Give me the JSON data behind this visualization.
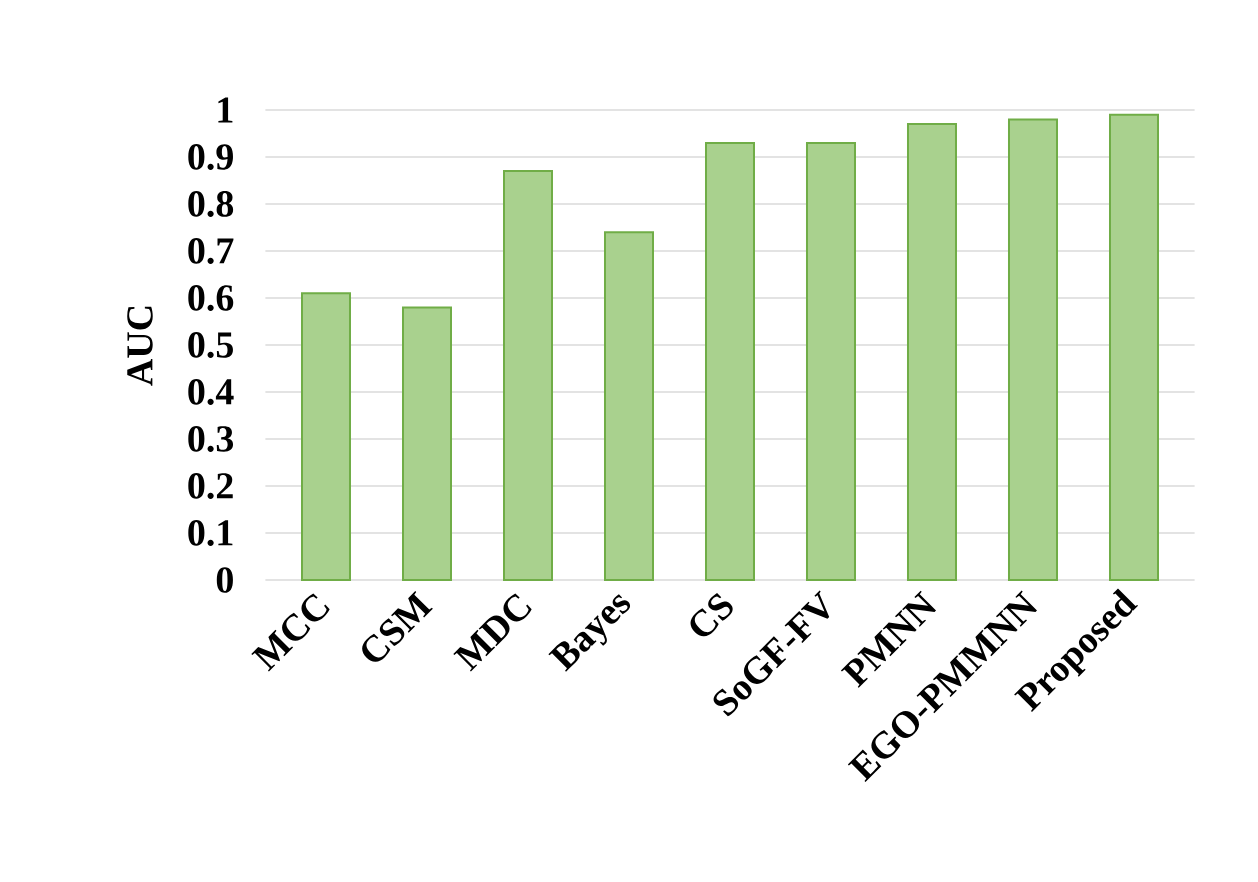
{
  "chart_data": {
    "type": "bar",
    "categories": [
      "MCC",
      "CSM",
      "MDC",
      "Bayes",
      "CS",
      "SoGF-FV",
      "PMNN",
      "EGO-PMMNN",
      "Proposed"
    ],
    "values": [
      0.61,
      0.58,
      0.87,
      0.74,
      0.93,
      0.93,
      0.97,
      0.98,
      0.99
    ],
    "color": "#a9d18e",
    "ylabel": "AUC",
    "ylim": [
      0,
      1
    ],
    "yticks": [
      0,
      0.1,
      0.2,
      0.3,
      0.4,
      0.5,
      0.6,
      0.7,
      0.8,
      0.9,
      1
    ],
    "grid": "y"
  }
}
